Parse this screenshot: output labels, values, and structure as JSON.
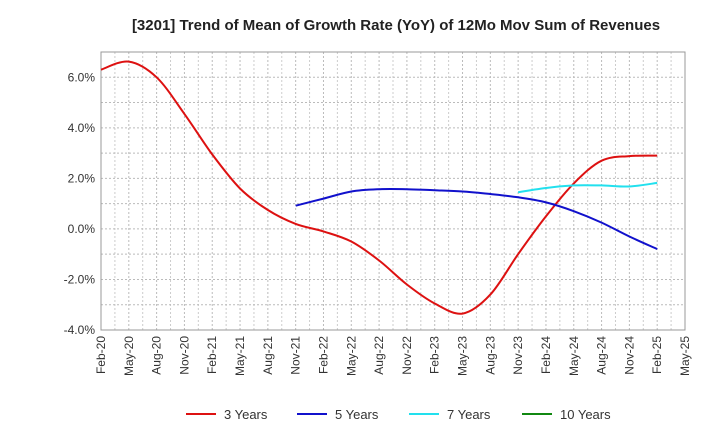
{
  "chart_data": {
    "type": "line",
    "title": "[3201]  Trend of Mean of Growth Rate (YoY) of 12Mo Mov Sum of Revenues",
    "xlabel": "",
    "ylabel": "",
    "ylim": [
      -4.0,
      7.0
    ],
    "grid": true,
    "legend_position": "bottom",
    "x_tick_labels": [
      "Feb-20",
      "May-20",
      "Aug-20",
      "Nov-20",
      "Feb-21",
      "May-21",
      "Aug-21",
      "Nov-21",
      "Feb-22",
      "May-22",
      "Aug-22",
      "Nov-22",
      "Feb-23",
      "May-23",
      "Aug-23",
      "Nov-23",
      "Feb-24",
      "May-24",
      "Aug-24",
      "Nov-24",
      "Feb-25",
      "May-25"
    ],
    "y_ticks": [
      {
        "value": 6,
        "label": "6.0%"
      },
      {
        "value": 4,
        "label": "4.0%"
      },
      {
        "value": 2,
        "label": "2.0%"
      },
      {
        "value": 0,
        "label": "0.0%"
      },
      {
        "value": -2,
        "label": "-2.0%"
      },
      {
        "value": -4,
        "label": "-4.0%"
      }
    ],
    "series": [
      {
        "name": "3 Years",
        "color": "#dd1111",
        "points": [
          [
            0,
            6.3
          ],
          [
            1,
            6.62
          ],
          [
            2,
            6.0
          ],
          [
            3,
            4.55
          ],
          [
            4,
            2.95
          ],
          [
            5,
            1.6
          ],
          [
            6,
            0.75
          ],
          [
            7,
            0.2
          ],
          [
            8,
            -0.1
          ],
          [
            9,
            -0.5
          ],
          [
            10,
            -1.25
          ],
          [
            11,
            -2.2
          ],
          [
            12,
            -2.95
          ],
          [
            13,
            -3.35
          ],
          [
            14,
            -2.6
          ],
          [
            15,
            -1.0
          ],
          [
            16,
            0.5
          ],
          [
            17,
            1.8
          ],
          [
            18,
            2.7
          ],
          [
            19,
            2.88
          ],
          [
            20,
            2.9
          ]
        ]
      },
      {
        "name": "5 Years",
        "color": "#1111cc",
        "points": [
          [
            7,
            0.92
          ],
          [
            8,
            1.2
          ],
          [
            9,
            1.48
          ],
          [
            10,
            1.57
          ],
          [
            11,
            1.57
          ],
          [
            12,
            1.53
          ],
          [
            13,
            1.48
          ],
          [
            14,
            1.38
          ],
          [
            15,
            1.25
          ],
          [
            16,
            1.05
          ],
          [
            17,
            0.7
          ],
          [
            18,
            0.25
          ],
          [
            19,
            -0.3
          ],
          [
            20,
            -0.8
          ]
        ]
      },
      {
        "name": "7 Years",
        "color": "#22e0ee",
        "points": [
          [
            15,
            1.45
          ],
          [
            16,
            1.62
          ],
          [
            17,
            1.72
          ],
          [
            18,
            1.72
          ],
          [
            19,
            1.68
          ],
          [
            20,
            1.82
          ]
        ]
      },
      {
        "name": "10 Years",
        "color": "#118811",
        "points": []
      }
    ]
  }
}
